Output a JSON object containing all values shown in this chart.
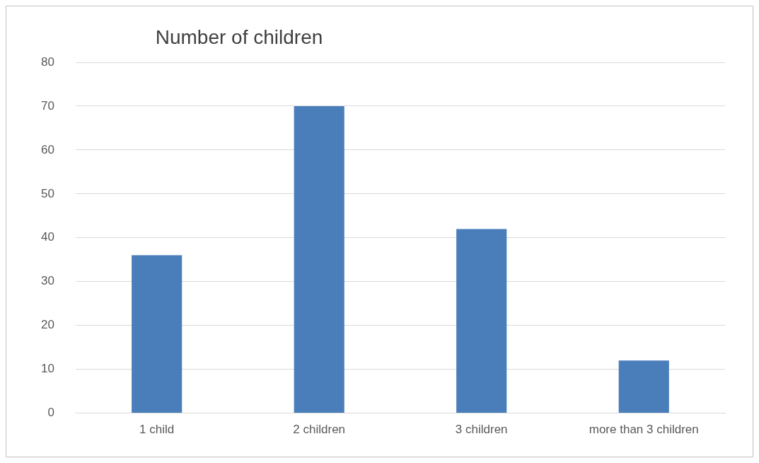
{
  "chart_data": {
    "type": "bar",
    "title": "Number of children",
    "categories": [
      "1 child",
      "2 children",
      "3 children",
      "more than 3 children"
    ],
    "values": [
      36,
      70,
      42,
      12
    ],
    "color": "#4a7ebb",
    "ylim": [
      0,
      80
    ],
    "yticks": [
      0,
      10,
      20,
      30,
      40,
      50,
      60,
      70,
      80
    ],
    "grid": "y",
    "legend": false
  }
}
